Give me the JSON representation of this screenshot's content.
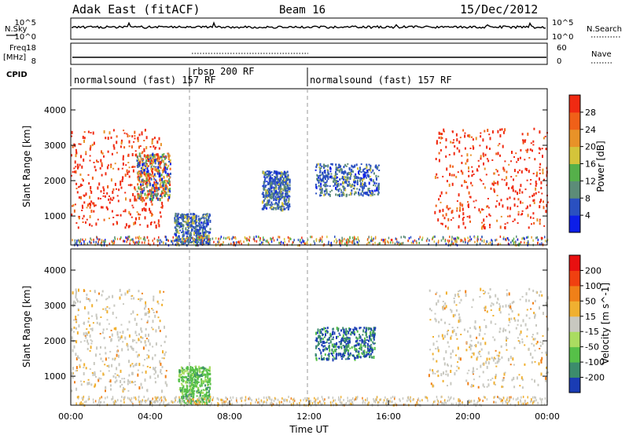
{
  "header": {
    "title": "Adak East (fitACF)",
    "beam": "Beam 16",
    "date": "15/Dec/2012"
  },
  "strip": {
    "nsky_label": "N.Sky",
    "nsky_ticks": [
      "10^5",
      "10^0"
    ],
    "nsearch_label": "N.Search",
    "nsearch_ticks": [
      "10^5",
      "10^0"
    ],
    "freq_label": "Freq.",
    "freq_unit": "[MHz]",
    "freq_ticks": [
      "18",
      "8"
    ],
    "nave_label": "Nave",
    "nave_ticks": [
      "60",
      "0"
    ],
    "cpid_label": "CPID",
    "cpid_segments": [
      {
        "label": "normalsound (fast) 157 RF",
        "start_h": 0,
        "end_h": 6
      },
      {
        "label": "rbsp 200 RF",
        "start_h": 6,
        "end_h": 12
      },
      {
        "label": "normalsound (fast) 157 RF",
        "start_h": 12,
        "end_h": 24
      }
    ]
  },
  "chart_data": [
    {
      "type": "heatmap",
      "name": "power",
      "ylabel": "Slant Range [km]",
      "yticks": [
        1000,
        2000,
        3000,
        4000
      ],
      "ylim": [
        180,
        4600
      ],
      "xlim": [
        0,
        24
      ],
      "colorbar": {
        "label": "Power [dB]",
        "ticks": [
          "4",
          "8",
          "12",
          "16",
          "20",
          "24",
          "28"
        ],
        "colors": [
          "#0c1ee8",
          "#2a50c0",
          "#5c8c78",
          "#55b04a",
          "#d4c43a",
          "#e89228",
          "#f06018",
          "#f02a12"
        ]
      },
      "regions": [
        {
          "t0": 0.0,
          "t1": 4.6,
          "r0": 700,
          "r1": 3500,
          "color_level": "high"
        },
        {
          "t0": 3.3,
          "t1": 5.0,
          "r0": 1500,
          "r1": 2800,
          "color_level": "mixed"
        },
        {
          "t0": 5.2,
          "t1": 7.0,
          "r0": 250,
          "r1": 1100,
          "color_level": "low"
        },
        {
          "t0": 9.6,
          "t1": 11.0,
          "r0": 1200,
          "r1": 2300,
          "color_level": "low"
        },
        {
          "t0": 12.3,
          "t1": 15.5,
          "r0": 1600,
          "r1": 2500,
          "color_level": "low"
        },
        {
          "t0": 18.3,
          "t1": 24.0,
          "r0": 700,
          "r1": 3500,
          "color_level": "high"
        }
      ]
    },
    {
      "type": "heatmap",
      "name": "velocity",
      "ylabel": "Slant Range [km]",
      "yticks": [
        1000,
        2000,
        3000,
        4000
      ],
      "ylim": [
        180,
        4600
      ],
      "xlim": [
        0,
        24
      ],
      "xlabel": "Time UT",
      "xticks": [
        "00:00",
        "04:00",
        "08:00",
        "12:00",
        "16:00",
        "20:00",
        "00:00"
      ],
      "colorbar": {
        "label": "Velocity [m s^-1]",
        "ticks": [
          "200",
          "100",
          "50",
          "15",
          "-15",
          "-50",
          "-100",
          "-200"
        ],
        "colors": [
          "#1a3cb4",
          "#3c8c6c",
          "#56c048",
          "#aadc60",
          "#c8c8c0",
          "#f0b030",
          "#f08018",
          "#f04010",
          "#e81010"
        ]
      },
      "regions": [
        {
          "t0": 0.0,
          "t1": 4.8,
          "r0": 600,
          "r1": 3500,
          "color_level": "grey-orange"
        },
        {
          "t0": 5.4,
          "t1": 7.0,
          "r0": 250,
          "r1": 1300,
          "color_level": "green"
        },
        {
          "t0": 12.3,
          "t1": 15.3,
          "r0": 1500,
          "r1": 2400,
          "color_level": "blue-green"
        },
        {
          "t0": 18.0,
          "t1": 24.0,
          "r0": 700,
          "r1": 3500,
          "color_level": "grey-orange"
        }
      ]
    }
  ]
}
